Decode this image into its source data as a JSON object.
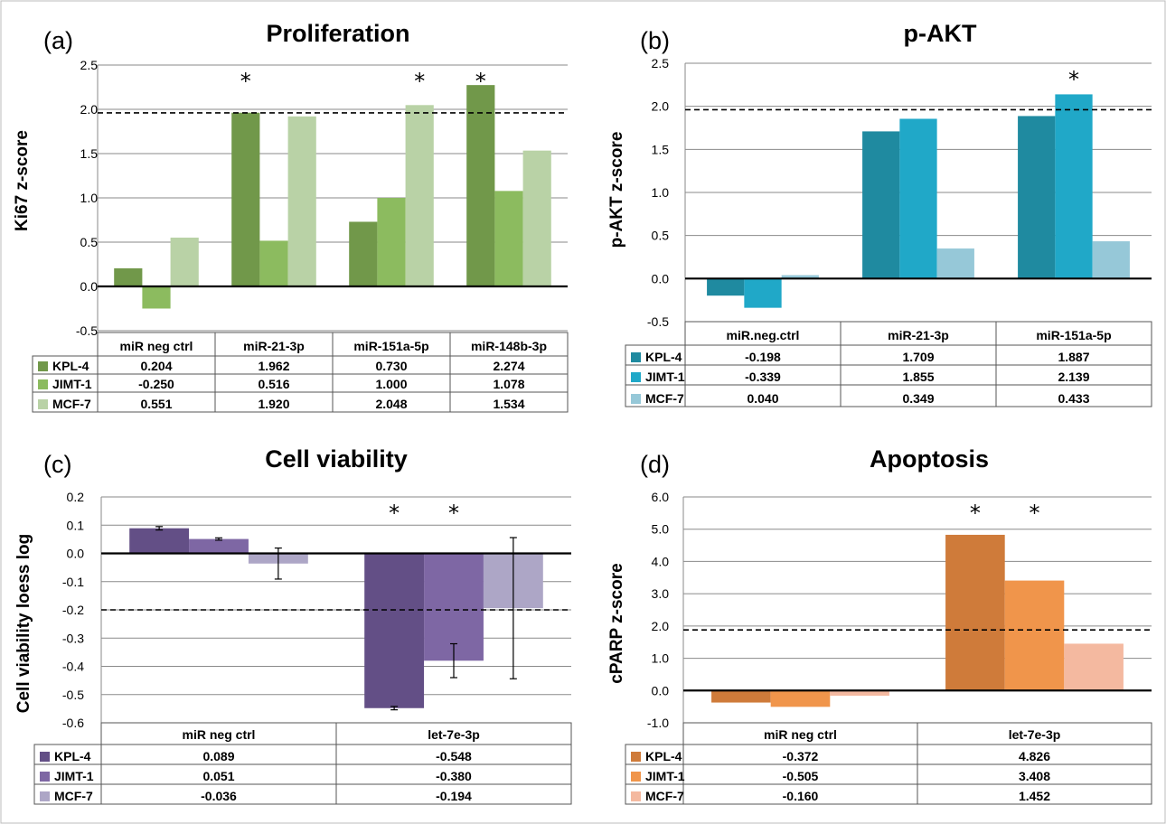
{
  "chart_data": [
    {
      "id": "a",
      "panel_label": "(a)",
      "type": "bar",
      "title": "Proliferation",
      "ylabel": "Ki67 z-score",
      "ylim": [
        -0.5,
        2.5
      ],
      "yticks": [
        "-0.5",
        "0.0",
        "0.5",
        "1.0",
        "1.5",
        "2.0",
        "2.5"
      ],
      "threshold": 1.96,
      "categories": [
        "miR neg ctrl",
        "miR-21-3p",
        "miR-151a-5p",
        "miR-148b-3p"
      ],
      "series": [
        {
          "name": "KPL-4",
          "color": "#71984a",
          "values": [
            0.204,
            1.962,
            0.73,
            2.274
          ],
          "labels": [
            "0.204",
            "1.962",
            "0.730",
            "2.274"
          ]
        },
        {
          "name": "JIMT-1",
          "color": "#8cbb5f",
          "values": [
            -0.25,
            0.516,
            1.0,
            1.078
          ],
          "labels": [
            "-0.250",
            "0.516",
            "1.000",
            "1.078"
          ]
        },
        {
          "name": "MCF-7",
          "color": "#b9d2a6",
          "values": [
            0.551,
            1.92,
            2.048,
            1.534
          ],
          "labels": [
            "0.551",
            "1.920",
            "2.048",
            "1.534"
          ]
        }
      ],
      "significant": [
        [
          1,
          0
        ],
        [
          2,
          2
        ],
        [
          3,
          0
        ]
      ]
    },
    {
      "id": "b",
      "panel_label": "(b)",
      "type": "bar",
      "title": "p-AKT",
      "ylabel": "p-AKT z-score",
      "ylim": [
        -0.5,
        2.5
      ],
      "yticks": [
        "-0.5",
        "0.0",
        "0.5",
        "1.0",
        "1.5",
        "2.0",
        "2.5"
      ],
      "threshold": 1.96,
      "categories": [
        "miR.neg.ctrl",
        "miR-21-3p",
        "miR-151a-5p"
      ],
      "series": [
        {
          "name": "KPL-4",
          "color": "#1f8aa0",
          "values": [
            -0.198,
            1.709,
            1.887
          ],
          "labels": [
            "-0.198",
            "1.709",
            "1.887"
          ]
        },
        {
          "name": "JIMT-1",
          "color": "#20a8c8",
          "values": [
            -0.339,
            1.855,
            2.139
          ],
          "labels": [
            "-0.339",
            "1.855",
            "2.139"
          ]
        },
        {
          "name": "MCF-7",
          "color": "#96c8d8",
          "values": [
            0.04,
            0.349,
            0.433
          ],
          "labels": [
            "0.040",
            "0.349",
            "0.433"
          ]
        }
      ],
      "significant": [
        [
          2,
          1
        ]
      ]
    },
    {
      "id": "c",
      "panel_label": "(c)",
      "type": "bar",
      "title": "Cell viability",
      "ylabel": "Cell viability loess log",
      "ylim": [
        -0.6,
        0.2
      ],
      "yticks": [
        "-0.6",
        "-0.5",
        "-0.4",
        "-0.3",
        "-0.2",
        "-0.1",
        "0.0",
        "0.1",
        "0.2"
      ],
      "threshold": -0.2,
      "categories": [
        "miR neg ctrl",
        "let-7e-3p"
      ],
      "series": [
        {
          "name": "KPL-4",
          "color": "#634f86",
          "values": [
            0.089,
            -0.548
          ],
          "labels": [
            "0.089",
            "-0.548"
          ],
          "errors": [
            0.006,
            0.006
          ]
        },
        {
          "name": "JIMT-1",
          "color": "#7e67a4",
          "values": [
            0.051,
            -0.38
          ],
          "labels": [
            "0.051",
            "-0.380"
          ],
          "errors": [
            0.004,
            0.06
          ]
        },
        {
          "name": "MCF-7",
          "color": "#ada6c6",
          "values": [
            -0.036,
            -0.194
          ],
          "labels": [
            "-0.036",
            "-0.194"
          ],
          "errors": [
            0.055,
            0.25
          ]
        }
      ],
      "significant": [
        [
          1,
          0
        ],
        [
          1,
          1
        ]
      ]
    },
    {
      "id": "d",
      "panel_label": "(d)",
      "type": "bar",
      "title": "Apoptosis",
      "ylabel": "cPARP z-score",
      "ylim": [
        -1.0,
        6.0
      ],
      "yticks": [
        "-1.0",
        "0.0",
        "1.0",
        "2.0",
        "3.0",
        "4.0",
        "5.0",
        "6.0"
      ],
      "threshold": 1.88,
      "categories": [
        "miR neg ctrl",
        "let-7e-3p"
      ],
      "series": [
        {
          "name": "KPL-4",
          "color": "#cf7b3a",
          "values": [
            -0.372,
            4.826
          ],
          "labels": [
            "-0.372",
            "4.826"
          ]
        },
        {
          "name": "JIMT-1",
          "color": "#f0954b",
          "values": [
            -0.505,
            3.408
          ],
          "labels": [
            "-0.505",
            "3.408"
          ]
        },
        {
          "name": "MCF-7",
          "color": "#f4b9a0",
          "values": [
            -0.16,
            1.452
          ],
          "labels": [
            "-0.160",
            "1.452"
          ]
        }
      ],
      "significant": [
        [
          1,
          0
        ],
        [
          1,
          1
        ]
      ]
    }
  ]
}
